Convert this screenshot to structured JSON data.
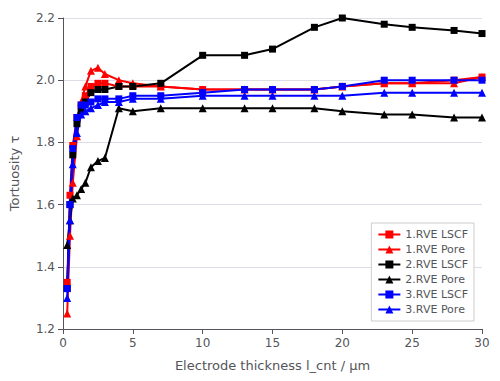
{
  "chart_data": {
    "type": "line",
    "xlabel": "Electrode thickness l_cnt / μm",
    "ylabel": "Tortuosity τ",
    "x": [
      0.3,
      0.5,
      0.7,
      1.0,
      1.3,
      1.6,
      2.0,
      2.5,
      3.0,
      4.0,
      5.0,
      7.0,
      10.0,
      13.0,
      15.0,
      18.0,
      20.0,
      23.0,
      25.0,
      28.0,
      30.0
    ],
    "series": [
      {
        "name": "1.RVE LSCF",
        "color": "#ff0000",
        "marker": "square",
        "values": [
          1.35,
          1.63,
          1.79,
          1.88,
          1.92,
          1.95,
          1.98,
          1.99,
          1.99,
          1.98,
          1.98,
          1.98,
          1.97,
          1.97,
          1.97,
          1.97,
          1.98,
          1.99,
          1.99,
          2.0,
          2.01
        ]
      },
      {
        "name": "1.RVE Pore",
        "color": "#ff0000",
        "marker": "triangle",
        "values": [
          1.25,
          1.5,
          1.67,
          1.82,
          1.93,
          1.98,
          2.03,
          2.04,
          2.02,
          2.0,
          1.99,
          1.98,
          1.97,
          1.97,
          1.97,
          1.97,
          1.98,
          1.99,
          1.99,
          1.99,
          2.01
        ]
      },
      {
        "name": "2.RVE LSCF",
        "color": "#000000",
        "marker": "square",
        "values": [
          1.33,
          1.6,
          1.76,
          1.86,
          1.9,
          1.93,
          1.96,
          1.97,
          1.97,
          1.98,
          1.98,
          1.99,
          2.08,
          2.08,
          2.1,
          2.17,
          2.2,
          2.18,
          2.17,
          2.16,
          2.15
        ]
      },
      {
        "name": "2.RVE Pore",
        "color": "#000000",
        "marker": "triangle",
        "values": [
          1.47,
          1.55,
          1.62,
          1.63,
          1.65,
          1.67,
          1.72,
          1.74,
          1.75,
          1.91,
          1.9,
          1.91,
          1.91,
          1.91,
          1.91,
          1.91,
          1.9,
          1.89,
          1.89,
          1.88,
          1.88
        ]
      },
      {
        "name": "3.RVE LSCF",
        "color": "#0000ff",
        "marker": "square",
        "values": [
          1.33,
          1.6,
          1.78,
          1.88,
          1.92,
          1.92,
          1.93,
          1.94,
          1.94,
          1.94,
          1.95,
          1.95,
          1.96,
          1.97,
          1.97,
          1.97,
          1.98,
          2.0,
          2.0,
          2.0,
          2.0
        ]
      },
      {
        "name": "3.RVE Pore",
        "color": "#0000ff",
        "marker": "triangle",
        "values": [
          1.3,
          1.55,
          1.73,
          1.83,
          1.89,
          1.9,
          1.91,
          1.92,
          1.93,
          1.93,
          1.94,
          1.94,
          1.95,
          1.95,
          1.95,
          1.95,
          1.95,
          1.96,
          1.96,
          1.96,
          1.96
        ]
      }
    ],
    "xlim": [
      0,
      30
    ],
    "xticks": [
      0,
      5,
      10,
      15,
      20,
      25,
      30
    ],
    "ylim": [
      1.2,
      2.2
    ],
    "yticks": [
      1.2,
      1.4,
      1.6,
      1.8,
      {
        "value": 2.0,
        "label": "2.0"
      },
      2.2
    ],
    "grid": true,
    "legend": "lower right"
  }
}
